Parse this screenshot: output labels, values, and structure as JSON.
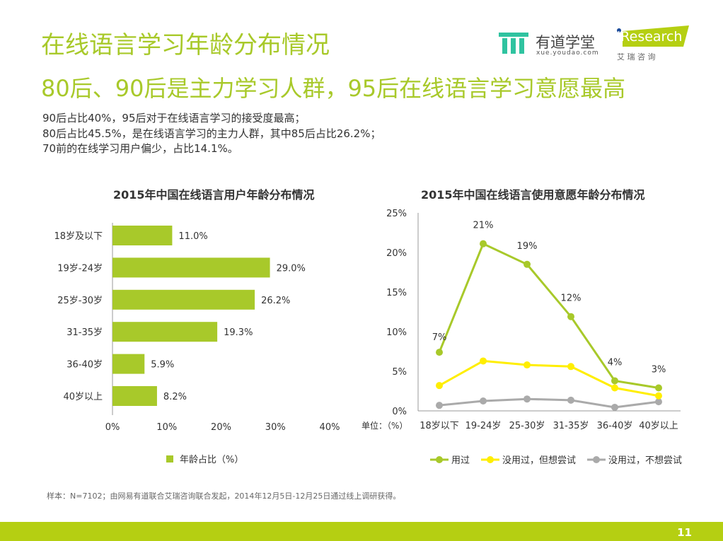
{
  "title": "在线语言学习年龄分布情况",
  "subtitle": "80后、90后是主力学习人群，95后在线语言学习意愿最高",
  "description": [
    "90后占比40%，95后对于在线语言学习的接受度最高；",
    "80后占比45.5%，是在线语言学习的主力人群，其中85后占比26.2%；",
    "70前的在线学习用户偏少，占比14.1%。"
  ],
  "logos": {
    "youdao": "有道学堂",
    "youdao_url": "xue.youdao.com",
    "iresearch": "iResearch",
    "iresearch_cn": "艾 瑞 咨 询"
  },
  "note": "样本：N=7102；由网易有道联合艾瑞咨询联合发起，2014年12月5日-12月25日通过线上调研获得。",
  "page_number": "11",
  "colors": {
    "accent": "#a8c92a",
    "bar": "#a8c92a",
    "yellow": "#ffee00",
    "gray": "#aaaaaa"
  },
  "chart_data": [
    {
      "type": "bar",
      "orientation": "horizontal",
      "title": "2015年中国在线语言用户年龄分布情况",
      "categories": [
        "18岁及以下",
        "19岁-24岁",
        "25岁-30岁",
        "31-35岁",
        "36-40岁",
        "40岁以上"
      ],
      "values": [
        11.0,
        29.0,
        26.2,
        19.3,
        5.9,
        8.2
      ],
      "data_labels": [
        "11.0%",
        "29.0%",
        "26.2%",
        "19.3%",
        "5.9%",
        "8.2%"
      ],
      "xlim": [
        0,
        40
      ],
      "xticks": [
        "0%",
        "10%",
        "20%",
        "30%",
        "40%"
      ],
      "legend": "年龄占比（%）",
      "legend_position": "bottom",
      "grid": false
    },
    {
      "type": "line",
      "title": "2015年中国在线语言使用意愿年龄分布情况",
      "categories": [
        "18岁以下",
        "19-24岁",
        "25-30岁",
        "31-35岁",
        "36-40岁",
        "40岁以上"
      ],
      "ylim": [
        0,
        25
      ],
      "yticks": [
        "0%",
        "5%",
        "10%",
        "15%",
        "20%",
        "25%"
      ],
      "unit_label": "单位：（%）",
      "legend_position": "bottom",
      "grid": false,
      "series": [
        {
          "name": "用过",
          "values": [
            7.4,
            21.1,
            18.5,
            11.9,
            3.8,
            2.9
          ],
          "labels": [
            "7%",
            "21%",
            "19%",
            "12%",
            "4%",
            "3%"
          ],
          "color": "#a8c92a"
        },
        {
          "name": "没用过，但想尝试",
          "values": [
            3.2,
            6.3,
            5.8,
            5.6,
            2.9,
            1.9
          ],
          "color": "#ffee00"
        },
        {
          "name": "没用过，不想尝试",
          "values": [
            0.7,
            1.25,
            1.5,
            1.35,
            0.45,
            1.15
          ],
          "color": "#aaaaaa"
        }
      ]
    }
  ]
}
